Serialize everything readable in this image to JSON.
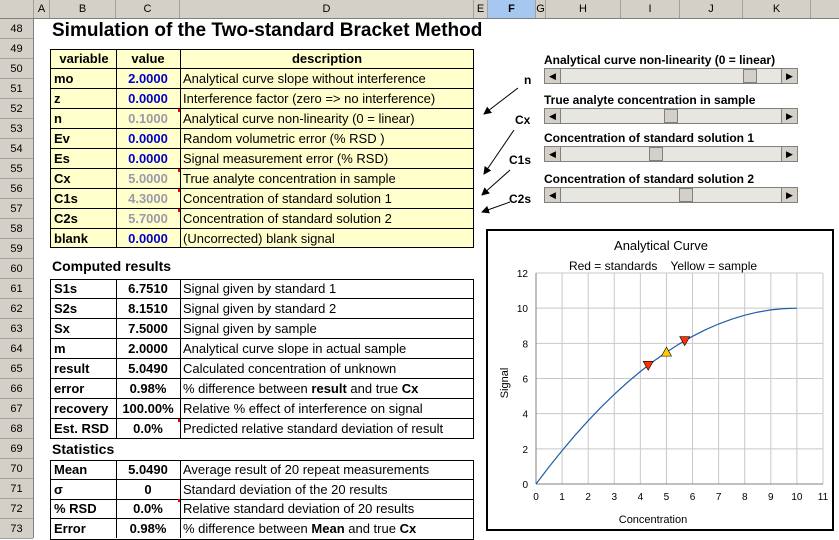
{
  "columns": [
    "A",
    "B",
    "C",
    "D",
    "E",
    "F",
    "G",
    "H",
    "I",
    "J",
    "K"
  ],
  "selected_column": "F",
  "rows": [
    "48",
    "49",
    "50",
    "51",
    "52",
    "53",
    "54",
    "55",
    "56",
    "57",
    "58",
    "59",
    "60",
    "61",
    "62",
    "63",
    "64",
    "65",
    "66",
    "67",
    "68",
    "69",
    "70",
    "71",
    "72",
    "73"
  ],
  "title": "Simulation of the Two-standard Bracket Method",
  "headers": {
    "variable": "variable",
    "value": "value",
    "description": "description"
  },
  "inputs": [
    {
      "variable": "mo",
      "value": "2.0000",
      "description": "Analytical curve slope without interference",
      "style": "blue"
    },
    {
      "variable": "z",
      "value": "0.0000",
      "description": "Interference factor (zero => no interference)",
      "style": "blue"
    },
    {
      "variable": "n",
      "value": "0.1000",
      "description": "Analytical curve non-linearity (0 = linear)",
      "style": "gray"
    },
    {
      "variable": "Ev",
      "value": "0.0000",
      "description": "Random volumetric error (% RSD )",
      "style": "blue"
    },
    {
      "variable": "Es",
      "value": "0.0000",
      "description": "Signal measurement error (% RSD)",
      "style": "blue"
    },
    {
      "variable": "Cx",
      "value": "5.0000",
      "description": "True analyte concentration in sample",
      "style": "gray"
    },
    {
      "variable": "C1s",
      "value": "4.3000",
      "description": "Concentration of standard solution 1",
      "style": "gray"
    },
    {
      "variable": "C2s",
      "value": "5.7000",
      "description": "Concentration of standard solution 2",
      "style": "gray"
    },
    {
      "variable": "blank",
      "value": "0.0000",
      "description": "(Uncorrected) blank signal",
      "style": "blue"
    }
  ],
  "computed_title": "Computed results",
  "computed": [
    {
      "variable": "S1s",
      "value": "6.7510",
      "description": "Signal given by standard 1"
    },
    {
      "variable": "S2s",
      "value": "8.1510",
      "description": "Signal given by standard 2"
    },
    {
      "variable": "Sx",
      "value": "7.5000",
      "description": "Signal given by sample"
    },
    {
      "variable": "m",
      "value": "2.0000",
      "description": "Analytical curve slope in actual sample"
    },
    {
      "variable": "result",
      "value": "5.0490",
      "description": "Calculated concentration of unknown"
    },
    {
      "variable": "error",
      "value": "0.98%",
      "description_pre": "% difference between ",
      "description_bold": "result",
      "description_mid": " and true ",
      "description_bold2": "Cx"
    },
    {
      "variable": "recovery",
      "value": "100.00%",
      "description": "Relative % effect of interference on signal"
    },
    {
      "variable": "Est. RSD",
      "value": "0.0%",
      "description": "Predicted relative standard deviation of result"
    }
  ],
  "stats_title": "Statistics",
  "stats": [
    {
      "variable": "Mean",
      "value": "5.0490",
      "description": "Average result of 20 repeat measurements"
    },
    {
      "variable": "σ",
      "value": "0",
      "description": "Standard deviation of the 20 results"
    },
    {
      "variable": "% RSD",
      "value": "0.0%",
      "description": "Relative standard deviation of 20 results"
    },
    {
      "variable": "Error",
      "value": "0.98%",
      "description_pre": "% difference between ",
      "description_bold": "Mean",
      "description_mid": " and true ",
      "description_bold2": "Cx"
    }
  ],
  "sliders": [
    {
      "label": "Analytical curve non-linearity (0 = linear)",
      "thumb": 0.88
    },
    {
      "label": "True analyte concentration in sample",
      "thumb": 0.5
    },
    {
      "label": "Concentration of standard solution 1",
      "thumb": 0.43
    },
    {
      "label": "Concentration of standard solution 2",
      "thumb": 0.57
    }
  ],
  "arrow_labels": [
    "n",
    "Cx",
    "C1s",
    "C2s"
  ],
  "chart_data": {
    "type": "line",
    "title": "Analytical Curve",
    "subtitle": "Red = standards    Yellow = sample",
    "xlabel": "Concentration",
    "ylabel": "Signal",
    "xlim": [
      0,
      11
    ],
    "ylim": [
      0,
      12
    ],
    "xticks": [
      "0",
      "1",
      "2",
      "3",
      "4",
      "5",
      "6",
      "7",
      "8",
      "9",
      "10",
      "11"
    ],
    "yticks": [
      "0",
      "2",
      "4",
      "6",
      "8",
      "10",
      "12"
    ],
    "grid": true,
    "curve": {
      "x": [
        0,
        0.5,
        1,
        1.5,
        2,
        2.5,
        3,
        3.5,
        4,
        4.5,
        5,
        5.5,
        6,
        6.5,
        7,
        7.5,
        8,
        8.5,
        9,
        9.5,
        10
      ],
      "y": [
        0,
        0.975,
        1.9,
        2.775,
        3.6,
        4.375,
        5.1,
        5.775,
        6.4,
        6.975,
        7.5,
        7.975,
        8.4,
        8.775,
        9.1,
        9.375,
        9.6,
        9.775,
        9.9,
        9.975,
        10
      ]
    },
    "standards": [
      {
        "x": 4.3,
        "y": 6.751
      },
      {
        "x": 5.7,
        "y": 8.151
      }
    ],
    "sample": [
      {
        "x": 5.0,
        "y": 7.5
      }
    ],
    "colors": {
      "curve": "#1f5fa8",
      "standards": "#ff3300",
      "sample": "#ffcc00"
    }
  }
}
